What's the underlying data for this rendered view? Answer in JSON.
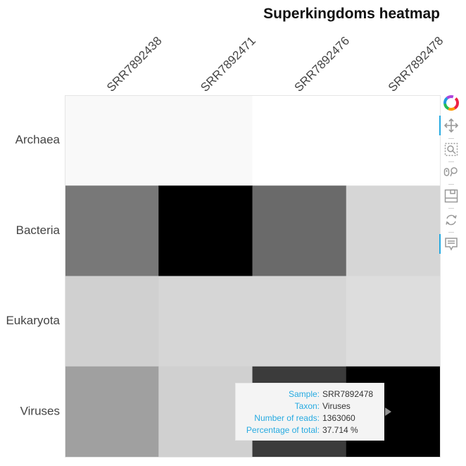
{
  "chart_data": {
    "type": "heatmap",
    "title": "Superkingdoms heatmap",
    "x_categories": [
      "SRR7892438",
      "SRR7892471",
      "SRR7892476",
      "SRR7892478"
    ],
    "y_categories": [
      "Archaea",
      "Bacteria",
      "Eukaryota",
      "Viruses"
    ],
    "values": [
      [
        0.9,
        0.9,
        0,
        0
      ],
      [
        20,
        46,
        22,
        6
      ],
      [
        7,
        6,
        6,
        5
      ],
      [
        14,
        7,
        29,
        37.714
      ]
    ],
    "color_scale": {
      "low": "#ffffff",
      "high": "#000000",
      "min": 0,
      "max": 37.714
    },
    "legend": "none",
    "grid": false
  },
  "tooltip": {
    "rows": [
      {
        "label": "Sample:",
        "value": "SRR7892478"
      },
      {
        "label": "Taxon:",
        "value": "Viruses"
      },
      {
        "label": "Number of reads:",
        "value": "1363060"
      },
      {
        "label": "Percentage of total:",
        "value": "37.714 %"
      }
    ]
  },
  "toolbar": {
    "tools": [
      {
        "name": "bokeh-logo-icon",
        "active": false
      },
      {
        "name": "pan-icon",
        "active": true
      },
      {
        "name": "box-zoom-icon",
        "active": false
      },
      {
        "name": "wheel-zoom-icon",
        "active": false
      },
      {
        "name": "save-icon",
        "active": false
      },
      {
        "name": "reset-icon",
        "active": false
      },
      {
        "name": "hover-icon",
        "active": true
      }
    ],
    "accent_color": "#26aae1"
  }
}
